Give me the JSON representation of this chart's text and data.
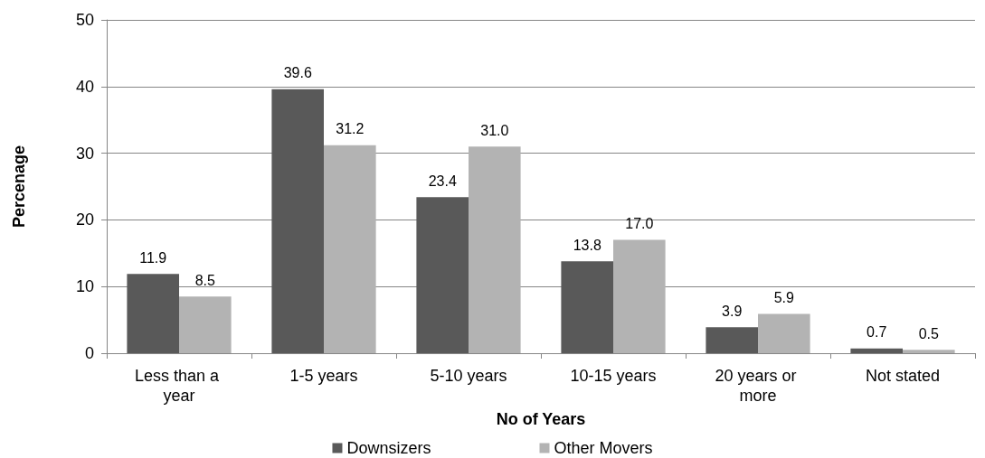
{
  "chart_data": {
    "type": "bar",
    "xlabel": "No of Years",
    "ylabel": "Percenage",
    "categories": [
      "Less than a year",
      "1-5 years",
      "5-10 years",
      "10-15 years",
      "20 years or more",
      "Not stated"
    ],
    "series": [
      {
        "name": "Downsizers",
        "color": "#595959",
        "values": [
          11.9,
          39.6,
          23.4,
          13.8,
          3.9,
          0.7
        ],
        "value_labels": [
          "11.9",
          "39.6",
          "23.4",
          "13.8",
          "3.9",
          "0.7"
        ]
      },
      {
        "name": "Other Movers",
        "color": "#b3b3b3",
        "values": [
          8.5,
          31.2,
          31.0,
          17.0,
          5.9,
          0.5
        ],
        "value_labels": [
          "8.5",
          "31.2",
          "31.0",
          "17.0",
          "5.9",
          "0.5"
        ]
      }
    ],
    "ylim": [
      0,
      50
    ],
    "yticks": [
      0,
      10,
      20,
      30,
      40,
      50
    ],
    "grid": "y",
    "legend": "bottom"
  }
}
